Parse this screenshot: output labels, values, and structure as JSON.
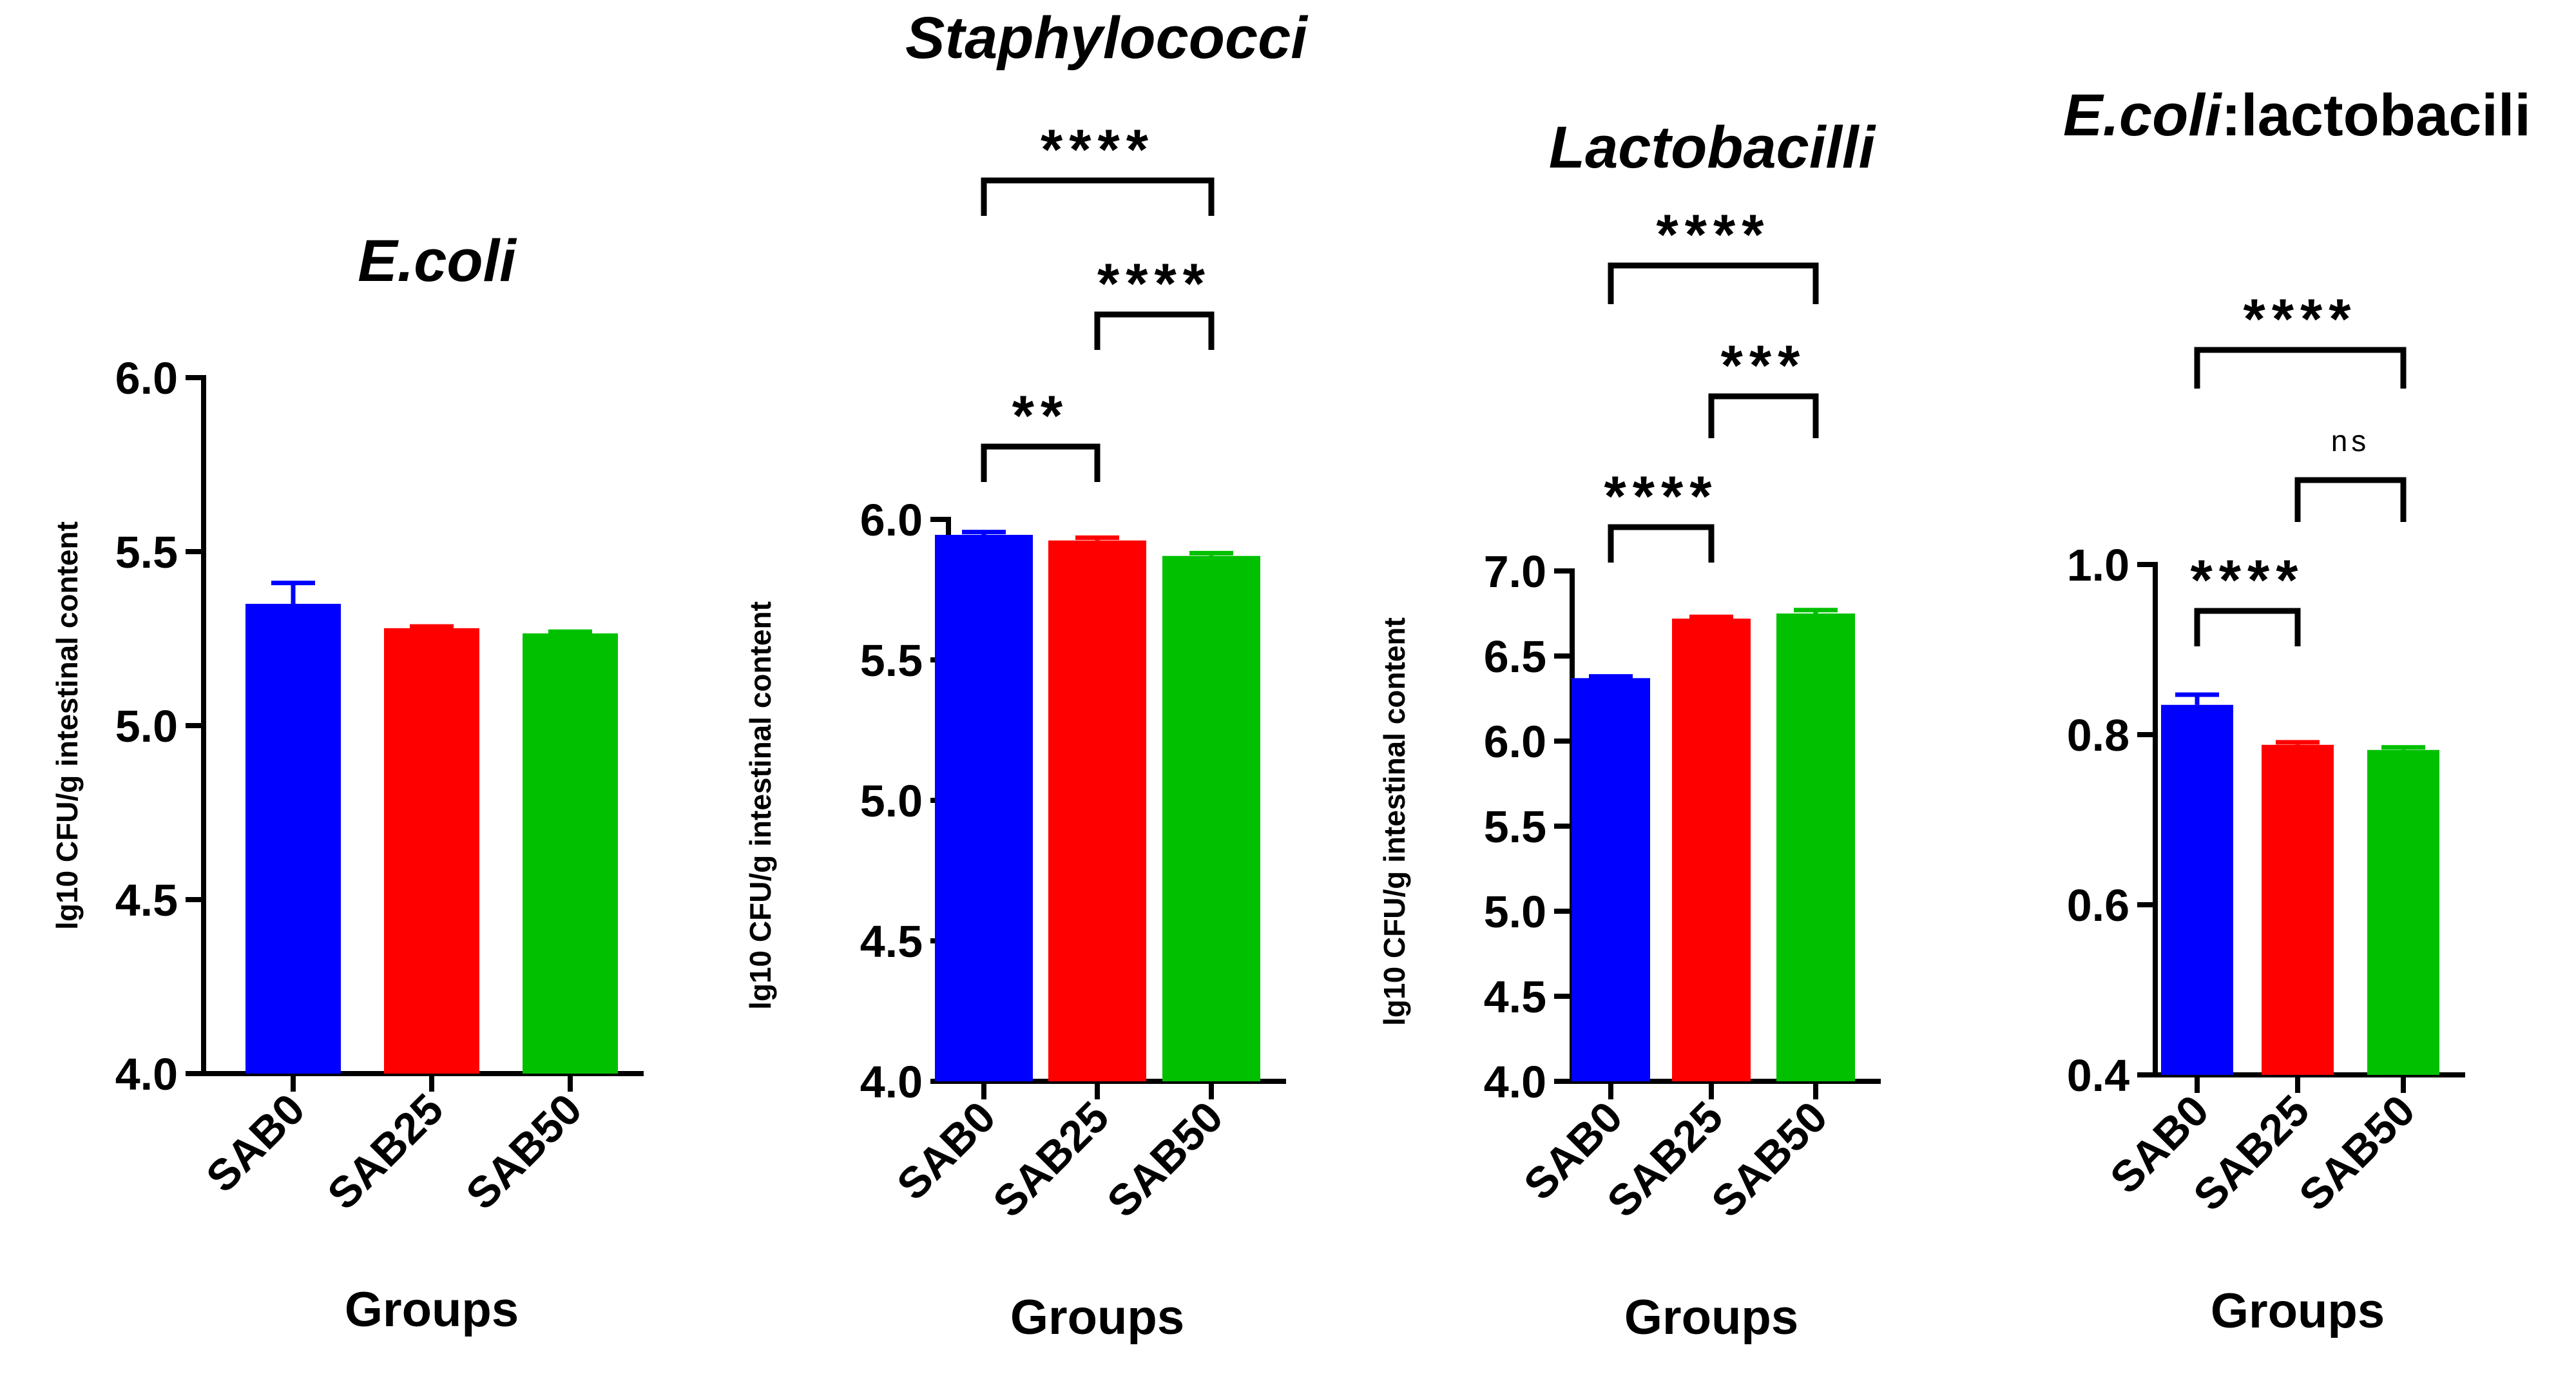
{
  "chart_data": [
    {
      "type": "bar",
      "title": "E.coli",
      "xlabel": "Groups",
      "ylabel": "lg10 CFU/g intestinal content",
      "categories": [
        "SAB0",
        "SAB25",
        "SAB50"
      ],
      "values": [
        5.35,
        5.28,
        5.265
      ],
      "errors": [
        0.06,
        0.005,
        0.005
      ],
      "colors": [
        "#0000ff",
        "#ff0000",
        "#00c000"
      ],
      "ylim": [
        4.0,
        6.0
      ],
      "yticks": [
        4.0,
        4.5,
        5.0,
        5.5,
        6.0
      ],
      "ytick_labels": [
        "4.0",
        "4.5",
        "5.0",
        "5.5",
        "6.0"
      ],
      "comparisons": []
    },
    {
      "type": "bar",
      "title": "Staphylococci",
      "xlabel": "Groups",
      "ylabel": "lg10 CFU/g intestinal content",
      "categories": [
        "SAB0",
        "SAB25",
        "SAB50"
      ],
      "values": [
        5.945,
        5.925,
        5.87
      ],
      "errors": [
        0.01,
        0.01,
        0.01
      ],
      "colors": [
        "#0000ff",
        "#ff0000",
        "#00c000"
      ],
      "ylim": [
        4.0,
        6.0
      ],
      "yticks": [
        4.0,
        4.5,
        5.0,
        5.5,
        6.0
      ],
      "ytick_labels": [
        "4.0",
        "4.5",
        "5.0",
        "5.5",
        "6.0"
      ],
      "comparisons": [
        {
          "from": 0,
          "to": 1,
          "label": "**"
        },
        {
          "from": 1,
          "to": 2,
          "label": "****"
        },
        {
          "from": 0,
          "to": 2,
          "label": "****"
        }
      ]
    },
    {
      "type": "bar",
      "title": "Lactobacilli",
      "xlabel": "Groups",
      "ylabel": "lg10 CFU/g intestinal content",
      "categories": [
        "SAB0",
        "SAB25",
        "SAB50"
      ],
      "values": [
        6.37,
        6.72,
        6.75
      ],
      "errors": [
        0.01,
        0.01,
        0.02
      ],
      "colors": [
        "#0000ff",
        "#ff0000",
        "#00c000"
      ],
      "ylim": [
        4.0,
        7.0
      ],
      "yticks": [
        4.0,
        4.5,
        5.0,
        5.5,
        6.0,
        6.5,
        7.0
      ],
      "ytick_labels": [
        "4.0",
        "4.5",
        "5.0",
        "5.5",
        "6.0",
        "6.5",
        "7.0"
      ],
      "comparisons": [
        {
          "from": 0,
          "to": 1,
          "label": "****"
        },
        {
          "from": 1,
          "to": 2,
          "label": "***"
        },
        {
          "from": 0,
          "to": 2,
          "label": "****"
        }
      ]
    },
    {
      "type": "bar",
      "title": "E.coli",
      "title_suffix": ":lactobacili",
      "xlabel": "Groups",
      "ylabel": "",
      "categories": [
        "SAB0",
        "SAB25",
        "SAB50"
      ],
      "values": [
        0.835,
        0.788,
        0.782
      ],
      "errors": [
        0.012,
        0.003,
        0.003
      ],
      "colors": [
        "#0000ff",
        "#ff0000",
        "#00c000"
      ],
      "ylim": [
        0.4,
        1.0
      ],
      "yticks": [
        0.4,
        0.6,
        0.8,
        1.0
      ],
      "ytick_labels": [
        "0.4",
        "0.6",
        "0.8",
        "1.0"
      ],
      "comparisons": [
        {
          "from": 0,
          "to": 1,
          "label": "****"
        },
        {
          "from": 1,
          "to": 2,
          "label": "ns"
        },
        {
          "from": 0,
          "to": 2,
          "label": "****"
        }
      ]
    }
  ]
}
